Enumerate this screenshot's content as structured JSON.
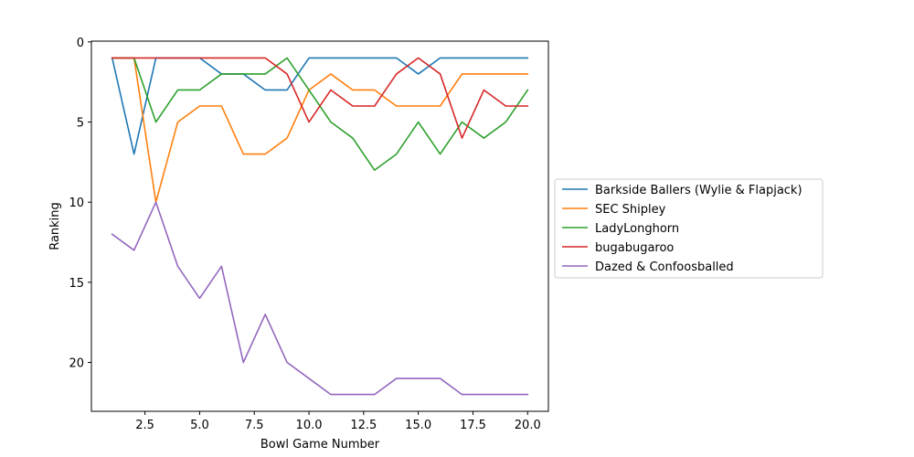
{
  "chart_data": {
    "type": "line",
    "xlabel": "Bowl Game Number",
    "ylabel": "Ranking",
    "xlim": [
      0.05,
      20.95
    ],
    "ylim": [
      23.05,
      -0.05
    ],
    "y_inverted": true,
    "xticks": [
      2.5,
      5.0,
      7.5,
      10.0,
      12.5,
      15.0,
      17.5,
      20.0
    ],
    "xtick_labels": [
      "2.5",
      "5.0",
      "7.5",
      "10.0",
      "12.5",
      "15.0",
      "17.5",
      "20.0"
    ],
    "yticks": [
      0,
      5,
      10,
      15,
      20
    ],
    "ytick_labels": [
      "0",
      "5",
      "10",
      "15",
      "20"
    ],
    "grid": false,
    "legend_position": "right",
    "x": [
      1,
      2,
      3,
      4,
      5,
      6,
      7,
      8,
      9,
      10,
      11,
      12,
      13,
      14,
      15,
      16,
      17,
      18,
      19,
      20
    ],
    "series": [
      {
        "name": "Barkside Ballers (Wylie & Flapjack)",
        "color": "#1f77b4",
        "values": [
          1,
          7,
          1,
          1,
          1,
          2,
          2,
          3,
          3,
          1,
          1,
          1,
          1,
          1,
          2,
          1,
          1,
          1,
          1,
          1
        ]
      },
      {
        "name": "SEC Shipley",
        "color": "#ff7f0e",
        "values": [
          1,
          1,
          10,
          5,
          4,
          4,
          7,
          7,
          6,
          3,
          2,
          3,
          3,
          4,
          4,
          4,
          2,
          2,
          2,
          2
        ]
      },
      {
        "name": "LadyLonghorn",
        "color": "#2ca02c",
        "values": [
          1,
          1,
          5,
          3,
          3,
          2,
          2,
          2,
          1,
          3,
          5,
          6,
          8,
          7,
          5,
          7,
          5,
          6,
          5,
          3
        ]
      },
      {
        "name": "bugabugaroo",
        "color": "#d62728",
        "values": [
          1,
          1,
          1,
          1,
          1,
          1,
          1,
          1,
          2,
          5,
          3,
          4,
          4,
          2,
          1,
          2,
          6,
          3,
          4,
          4
        ]
      },
      {
        "name": "Dazed & Confoosballed",
        "color": "#9467bd",
        "values": [
          12,
          13,
          10,
          14,
          16,
          14,
          20,
          17,
          20,
          21,
          22,
          22,
          22,
          21,
          21,
          21,
          22,
          22,
          22,
          22
        ]
      }
    ]
  }
}
